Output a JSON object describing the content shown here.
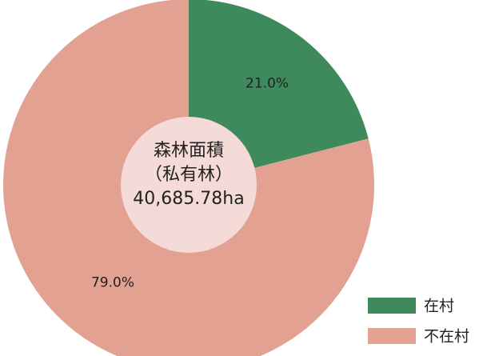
{
  "chart_data": {
    "type": "pie",
    "categories": [
      "在村",
      "不在村"
    ],
    "values": [
      21.0,
      79.0
    ],
    "value_labels": [
      "21.0%",
      "79.0%"
    ],
    "colors": [
      "#3f8a5c",
      "#e3a192"
    ],
    "center_label": [
      "森林面積",
      "（私有林）",
      "40,685.78ha"
    ],
    "legend": "bottom-right"
  }
}
